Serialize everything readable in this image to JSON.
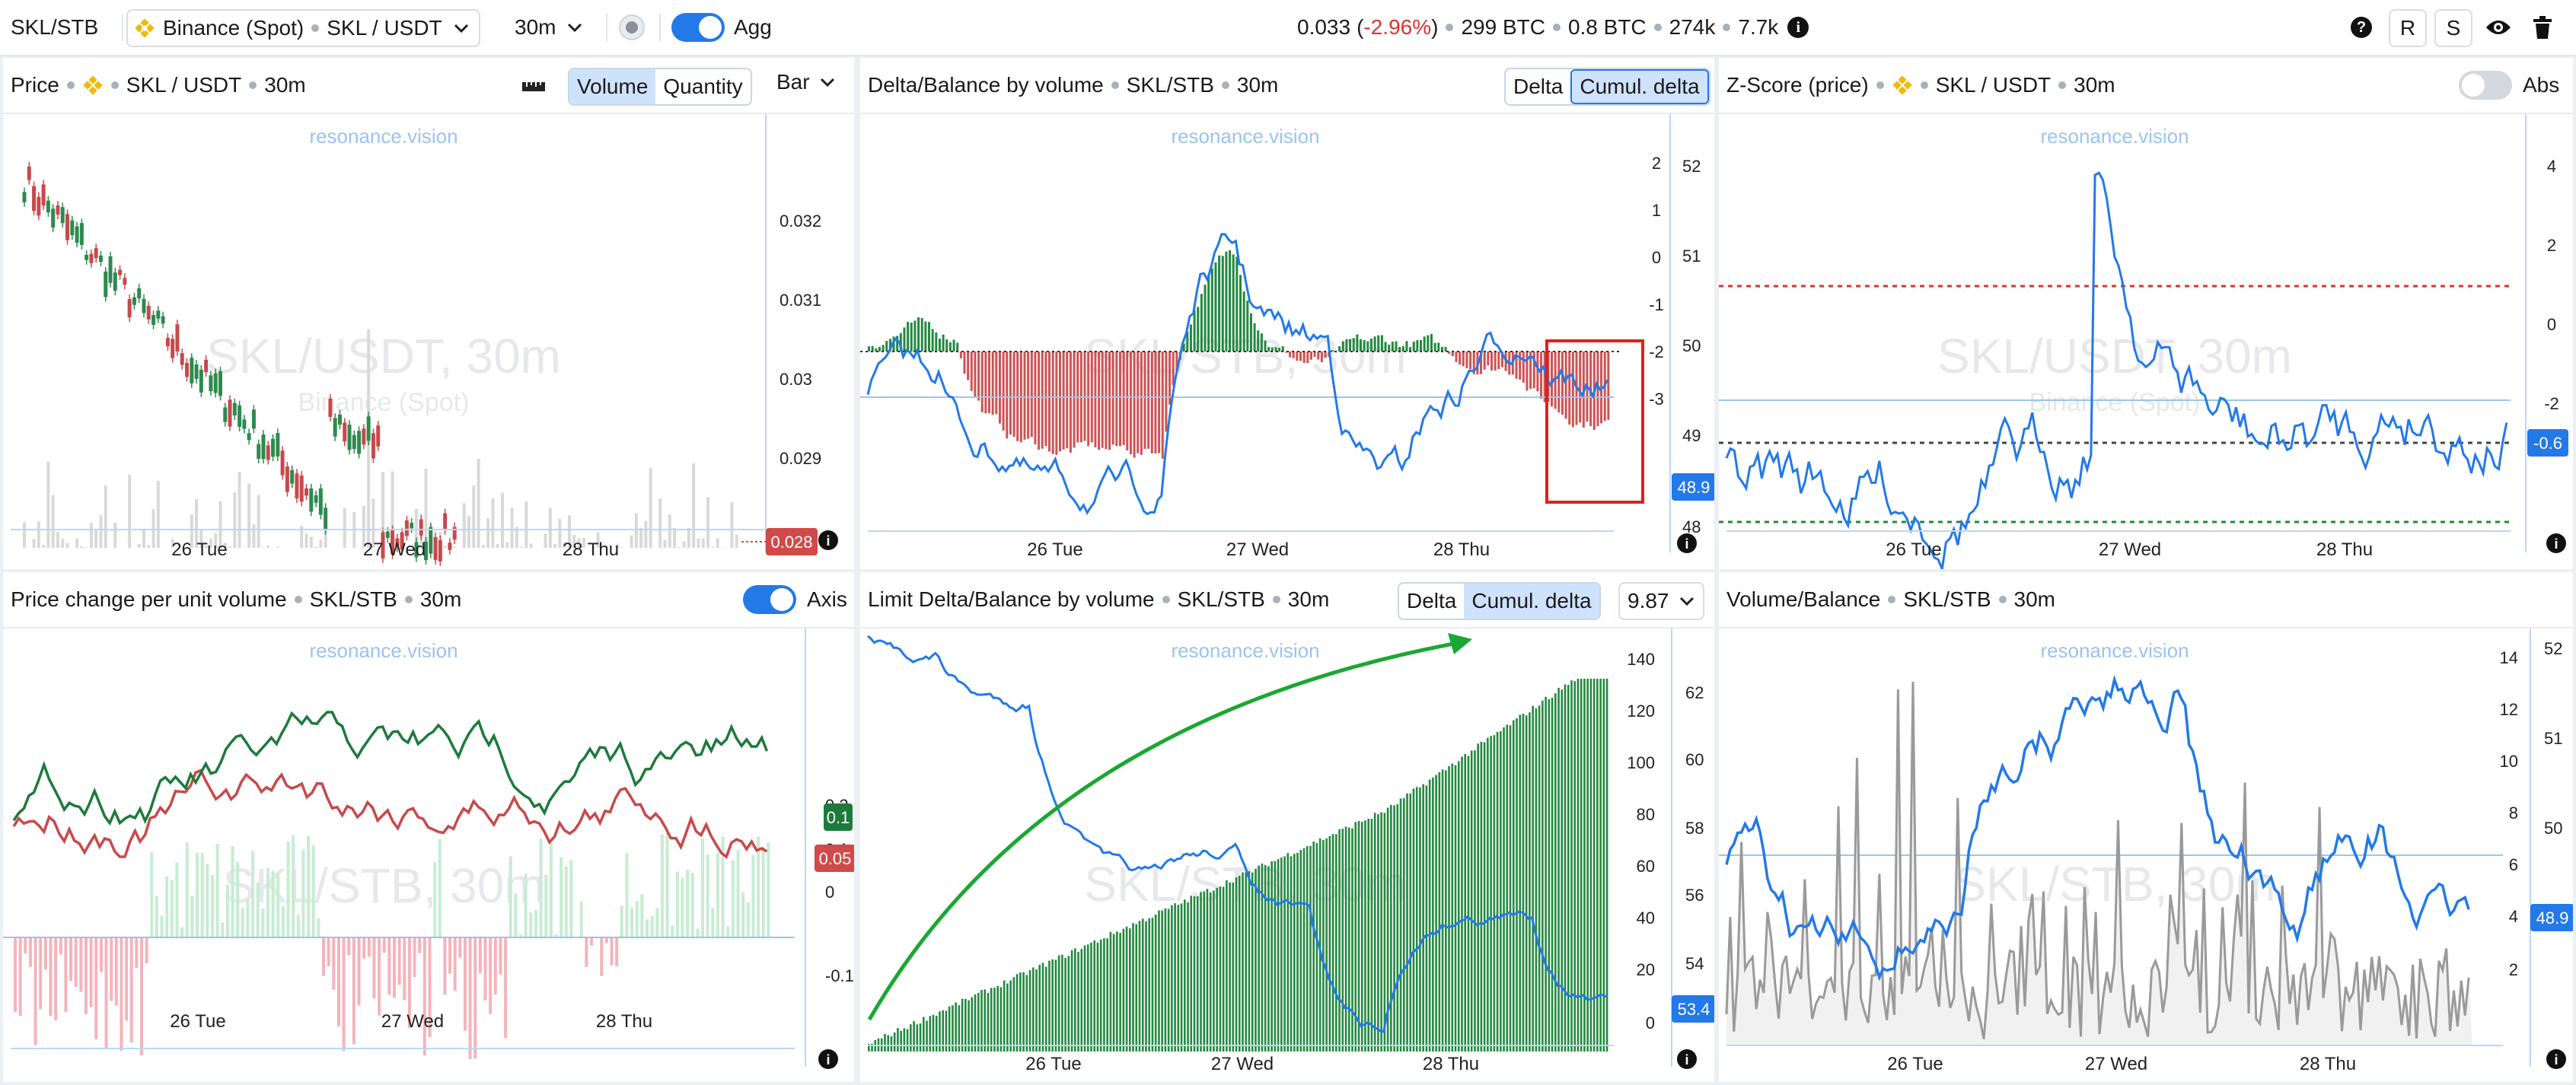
{
  "topbar": {
    "pair": "SKL/STB",
    "exchange": "Binance (Spot)",
    "symbol": "SKL / USDT",
    "interval": "30m",
    "agg_label": "Agg",
    "price": "0.033",
    "change": "-2.96%",
    "vol_btc": "299 BTC",
    "vol_btc2": "0.8 BTC",
    "trades": "274k",
    "count": "7.7k",
    "btn_r": "R",
    "btn_s": "S",
    "icons": [
      "chevron-down-icon",
      "record-icon",
      "info-icon",
      "help-icon",
      "eye-icon",
      "trash-icon"
    ]
  },
  "common": {
    "watermark": "resonance.vision",
    "x_ticks": [
      "26 Tue",
      "27 Wed",
      "28 Thu"
    ]
  },
  "p1": {
    "title": "Price",
    "symbol": "SKL / USDT",
    "interval": "30m",
    "seg_volume": "Volume",
    "seg_quantity": "Quantity",
    "chart_type": "Bar",
    "bg_title": "SKL/USDT, 30m",
    "bg_sub": "Binance (Spot)",
    "y_ticks": [
      "0.032",
      "0.031",
      "0.03",
      "0.029"
    ],
    "last": "0.028"
  },
  "p2": {
    "title": "Delta/Balance by volume",
    "symbol": "SKL/STB",
    "interval": "30m",
    "seg_delta": "Delta",
    "seg_cumul": "Cumul. delta",
    "bg_title": "SKL/STB, 30m",
    "y_left": [
      "2",
      "1",
      "0",
      "-1",
      "-2",
      "-3"
    ],
    "y_right": [
      "52",
      "51",
      "50",
      "49",
      "48"
    ],
    "last": "48.9"
  },
  "p3": {
    "title": "Z-Score (price)",
    "symbol": "SKL / USDT",
    "interval": "30m",
    "abs_label": "Abs",
    "bg_title": "SKL/USDT, 30m",
    "bg_sub": "Binance (Spot)",
    "y_ticks": [
      "4",
      "2",
      "0",
      "-2"
    ],
    "last": "-0.6"
  },
  "p4": {
    "title": "Price change per unit volume",
    "symbol": "SKL/STB",
    "interval": "30m",
    "axis_label": "Axis",
    "bg_title": "SKL/STB, 30m",
    "y_ticks": [
      "0.2",
      "0.1",
      "0",
      "-0.1"
    ],
    "last_green": "0.1",
    "last_red": "0.05"
  },
  "p5": {
    "title": "Limit Delta/Balance by volume",
    "symbol": "SKL/STB",
    "interval": "30m",
    "seg_delta": "Delta",
    "seg_cumul": "Cumul. delta",
    "threshold": "9.87",
    "bg_title": "SKL/STB, 30m",
    "y_left": [
      "140",
      "120",
      "100",
      "80",
      "60",
      "40",
      "20",
      "0"
    ],
    "y_right": [
      "62",
      "60",
      "58",
      "56",
      "54"
    ],
    "last": "53.4"
  },
  "p6": {
    "title": "Volume/Balance",
    "symbol": "SKL/STB",
    "interval": "30m",
    "bg_title": "SKL/STB, 30m",
    "y_left": [
      "14",
      "12",
      "10",
      "8",
      "6",
      "4",
      "2"
    ],
    "y_right": [
      "52",
      "51",
      "50",
      "49"
    ],
    "last": "48.9"
  },
  "colors": {
    "accent": "#2379e8",
    "green": "#1e7a3c",
    "red": "#c9484b",
    "bar_green": "#23883f",
    "bar_red": "#cc5353",
    "neg": "#e0322f"
  }
}
